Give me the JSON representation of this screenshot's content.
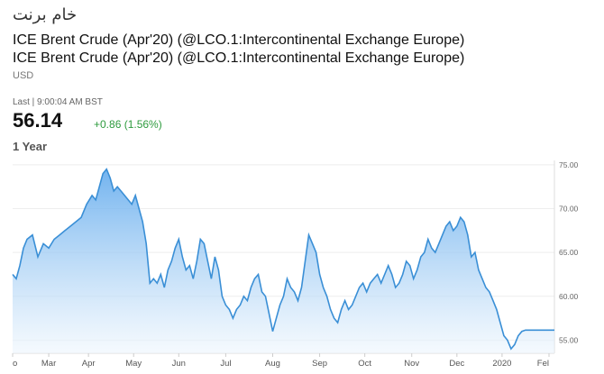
{
  "header": {
    "arabic_title": "خام برنت",
    "title_line1": "ICE Brent Crude (Apr'20) (@LCO.1:Intercontinental Exchange Europe)",
    "title_line2": "ICE Brent Crude (Apr'20) (@LCO.1:Intercontinental Exchange Europe)",
    "currency": "USD"
  },
  "quote": {
    "last_label": "Last | 9:00:04 AM BST",
    "price": "56.14",
    "change": "+0.86 (1.56%)",
    "range_label": "1 Year"
  },
  "colors": {
    "line": "#3a8fd6",
    "area_top": "#5aa6ec",
    "area_bottom": "#eef6fd",
    "change_positive": "#2e9b3e"
  },
  "chart_data": {
    "type": "area",
    "xlabel": "",
    "ylabel": "",
    "ylim": [
      53.5,
      75.5
    ],
    "yticks": [
      "75.00",
      "70.00",
      "65.00",
      "60.00",
      "55.00"
    ],
    "ytick_values": [
      75,
      70,
      65,
      60,
      55
    ],
    "month_labels": [
      "o",
      "Mar",
      "Apr",
      "May",
      "Jun",
      "Jul",
      "Aug",
      "Sep",
      "Oct",
      "Nov",
      "Dec",
      "2020",
      "Fel"
    ],
    "month_positions": [
      0,
      20,
      42,
      67,
      92,
      118,
      144,
      170,
      195,
      221,
      246,
      271,
      297
    ],
    "series": [
      {
        "x": [
          0,
          2,
          4,
          6,
          8,
          11,
          14,
          17,
          20,
          23,
          26,
          29,
          32,
          35,
          38,
          41,
          44,
          46,
          48,
          50,
          52,
          54,
          56,
          58,
          60,
          62,
          64,
          66,
          68,
          70,
          72,
          74,
          76,
          78,
          80,
          82,
          84,
          86,
          88,
          90,
          92,
          94,
          96,
          98,
          100,
          102,
          104,
          106,
          108,
          110,
          112,
          114,
          116,
          118,
          120,
          122,
          124,
          126,
          128,
          130,
          132,
          134,
          136,
          138,
          140,
          142,
          144,
          146,
          148,
          150,
          152,
          154,
          156,
          158,
          160,
          162,
          164,
          166,
          168,
          170,
          172,
          174,
          176,
          178,
          180,
          182,
          184,
          186,
          188,
          190,
          192,
          194,
          196,
          198,
          200,
          202,
          204,
          206,
          208,
          210,
          212,
          214,
          216,
          218,
          220,
          222,
          224,
          226,
          228,
          230,
          232,
          234,
          236,
          238,
          240,
          242,
          244,
          246,
          248,
          250,
          252,
          254,
          256,
          258,
          260,
          262,
          264,
          266,
          268,
          270,
          272,
          274,
          276,
          278,
          280,
          282,
          284,
          286,
          288,
          290,
          292,
          294,
          296,
          298,
          300
        ],
        "y": [
          62.5,
          62.0,
          63.5,
          65.5,
          66.5,
          67.0,
          64.5,
          66.0,
          65.5,
          66.5,
          67.0,
          67.5,
          68.0,
          68.5,
          69.0,
          70.5,
          71.5,
          71.0,
          72.5,
          74.0,
          74.5,
          73.5,
          72.0,
          72.5,
          72.0,
          71.5,
          71.0,
          70.5,
          71.5,
          70.0,
          68.5,
          66.0,
          61.5,
          62.0,
          61.5,
          62.5,
          61.0,
          63.0,
          64.0,
          65.5,
          66.5,
          64.5,
          63.0,
          63.5,
          62.0,
          64.0,
          66.5,
          66.0,
          64.0,
          62.0,
          64.5,
          63.0,
          60.0,
          59.0,
          58.5,
          57.5,
          58.5,
          59.0,
          60.0,
          59.5,
          61.0,
          62.0,
          62.5,
          60.5,
          60.0,
          58.0,
          56.0,
          57.5,
          59.0,
          60.0,
          62.0,
          61.0,
          60.5,
          59.5,
          61.0,
          64.0,
          67.0,
          66.0,
          65.0,
          62.5,
          61.0,
          60.0,
          58.5,
          57.5,
          57.0,
          58.5,
          59.5,
          58.5,
          59.0,
          60.0,
          61.0,
          61.5,
          60.5,
          61.5,
          62.0,
          62.5,
          61.5,
          62.5,
          63.5,
          62.5,
          61.0,
          61.5,
          62.5,
          64.0,
          63.5,
          62.0,
          63.0,
          64.5,
          65.0,
          66.5,
          65.5,
          65.0,
          66.0,
          67.0,
          68.0,
          68.5,
          67.5,
          68.0,
          69.0,
          68.5,
          67.0,
          64.5,
          65.0,
          63.0,
          62.0,
          61.0,
          60.5,
          59.5,
          58.5,
          57.0,
          55.5,
          55.0,
          54.0,
          54.5,
          55.5,
          56.0,
          56.14,
          56.14,
          56.14,
          56.14,
          56.14,
          56.14,
          56.14,
          56.14,
          56.14
        ]
      }
    ]
  }
}
